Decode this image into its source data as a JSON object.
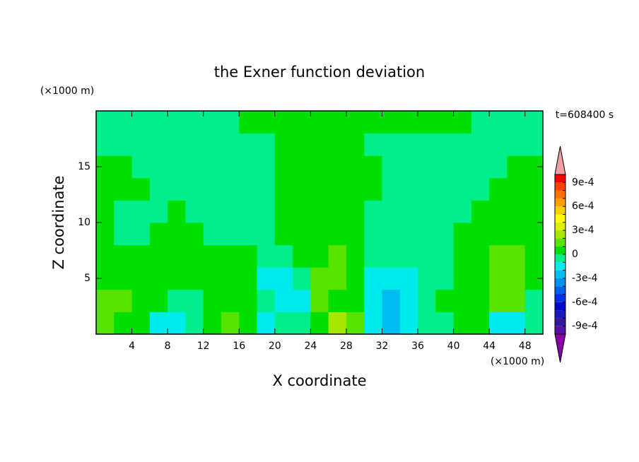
{
  "chart_data": {
    "type": "contour",
    "title": "the Exner function deviation",
    "xlabel": "X coordinate",
    "ylabel": "Z coordinate",
    "xunit": "(×1000 m)",
    "yunit": "(×1000 m)",
    "annotation": "t=608400 s",
    "xlim": [
      0,
      50
    ],
    "ylim": [
      0,
      20
    ],
    "xticks": [
      4,
      8,
      12,
      16,
      20,
      24,
      28,
      32,
      36,
      40,
      44,
      48
    ],
    "yticks": [
      5,
      10,
      15
    ],
    "levels": [
      -0.001,
      -0.0009,
      -0.0008,
      -0.0007,
      -0.0006,
      -0.0005,
      -0.0004,
      -0.0003,
      -0.0002,
      -0.0001,
      0,
      0.0001,
      0.0002,
      0.0003,
      0.0004,
      0.0005,
      0.0006,
      0.0007,
      0.0008,
      0.0009,
      0.001
    ],
    "colors": [
      "#5a10a8",
      "#34189c",
      "#1c18b8",
      "#0008d0",
      "#0030e8",
      "#0060f0",
      "#0090f0",
      "#00bcf0",
      "#00ecec",
      "#00ee8c",
      "#00e000",
      "#58e400",
      "#a8e800",
      "#dcf000",
      "#ffff00",
      "#ffd000",
      "#ffa000",
      "#ff7000",
      "#ff4000",
      "#ff0000"
    ],
    "under_color": "#8a00a8",
    "over_color": "#f0a0a0",
    "cbticks": [
      {
        "value": -0.0009,
        "label": "-9e-4"
      },
      {
        "value": -0.0006,
        "label": "-6e-4"
      },
      {
        "value": -0.0003,
        "label": "-3e-4"
      },
      {
        "value": 0,
        "label": "0"
      },
      {
        "value": 0.0003,
        "label": "3e-4"
      },
      {
        "value": 0.0006,
        "label": "6e-4"
      },
      {
        "value": 0.0009,
        "label": "9e-4"
      }
    ],
    "z": [
      [
        0.00015,
        5e-05,
        5e-05,
        -0.00015,
        -0.00015,
        -5e-05,
        5e-05,
        0.00015,
        5e-05,
        -0.00015,
        -5e-05,
        -5e-05,
        5e-05,
        0.00025,
        0.00015,
        -0.00015,
        -0.00025,
        -0.00015,
        -5e-05,
        -5e-05,
        5e-05,
        5e-05,
        -0.00015,
        -0.00015,
        -5e-05
      ],
      [
        0.00015,
        0.00015,
        5e-05,
        5e-05,
        -5e-05,
        -5e-05,
        5e-05,
        5e-05,
        5e-05,
        -5e-05,
        -0.00015,
        -0.00015,
        0.00015,
        5e-05,
        5e-05,
        -0.00015,
        -0.00025,
        -0.00015,
        -5e-05,
        5e-05,
        5e-05,
        5e-05,
        0.00015,
        0.00015,
        -5e-05
      ],
      [
        5e-05,
        5e-05,
        5e-05,
        5e-05,
        5e-05,
        5e-05,
        5e-05,
        5e-05,
        5e-05,
        -0.00015,
        -0.00015,
        -5e-05,
        0.00015,
        0.00015,
        5e-05,
        -0.00015,
        -0.00015,
        -0.00015,
        -5e-05,
        -5e-05,
        5e-05,
        5e-05,
        0.00015,
        0.00015,
        5e-05
      ],
      [
        5e-05,
        5e-05,
        5e-05,
        5e-05,
        5e-05,
        5e-05,
        5e-05,
        5e-05,
        5e-05,
        -5e-05,
        -5e-05,
        5e-05,
        5e-05,
        0.00015,
        5e-05,
        -5e-05,
        -5e-05,
        -5e-05,
        -5e-05,
        -5e-05,
        5e-05,
        5e-05,
        0.00015,
        0.00015,
        5e-05
      ],
      [
        5e-05,
        -5e-05,
        -5e-05,
        5e-05,
        5e-05,
        5e-05,
        -5e-05,
        -5e-05,
        -5e-05,
        -5e-05,
        5e-05,
        5e-05,
        5e-05,
        5e-05,
        5e-05,
        -5e-05,
        -5e-05,
        -5e-05,
        -5e-05,
        -5e-05,
        5e-05,
        5e-05,
        5e-05,
        5e-05,
        5e-05
      ],
      [
        5e-05,
        -5e-05,
        -5e-05,
        -5e-05,
        5e-05,
        -5e-05,
        -5e-05,
        -5e-05,
        -5e-05,
        -5e-05,
        5e-05,
        5e-05,
        5e-05,
        5e-05,
        5e-05,
        -5e-05,
        -5e-05,
        -5e-05,
        -5e-05,
        -5e-05,
        -5e-05,
        5e-05,
        5e-05,
        5e-05,
        5e-05
      ],
      [
        5e-05,
        5e-05,
        5e-05,
        -5e-05,
        -5e-05,
        -5e-05,
        -5e-05,
        -5e-05,
        -5e-05,
        -5e-05,
        5e-05,
        5e-05,
        5e-05,
        5e-05,
        5e-05,
        5e-05,
        -5e-05,
        -5e-05,
        -5e-05,
        -5e-05,
        -5e-05,
        -5e-05,
        5e-05,
        5e-05,
        5e-05
      ],
      [
        5e-05,
        5e-05,
        -5e-05,
        -5e-05,
        -5e-05,
        -5e-05,
        -5e-05,
        -5e-05,
        -5e-05,
        -5e-05,
        5e-05,
        5e-05,
        5e-05,
        5e-05,
        5e-05,
        5e-05,
        -5e-05,
        -5e-05,
        -5e-05,
        -5e-05,
        -5e-05,
        -5e-05,
        -5e-05,
        5e-05,
        5e-05
      ],
      [
        -5e-05,
        -5e-05,
        -5e-05,
        -5e-05,
        -5e-05,
        -5e-05,
        -5e-05,
        -5e-05,
        -5e-05,
        -5e-05,
        5e-05,
        5e-05,
        5e-05,
        5e-05,
        5e-05,
        -5e-05,
        -5e-05,
        -5e-05,
        -5e-05,
        -5e-05,
        -5e-05,
        -5e-05,
        -5e-05,
        -5e-05,
        -5e-05
      ],
      [
        -5e-05,
        -5e-05,
        -5e-05,
        -5e-05,
        -5e-05,
        -5e-05,
        -5e-05,
        -5e-05,
        5e-05,
        5e-05,
        5e-05,
        5e-05,
        5e-05,
        5e-05,
        5e-05,
        5e-05,
        5e-05,
        5e-05,
        5e-05,
        5e-05,
        5e-05,
        -5e-05,
        -5e-05,
        -5e-05,
        -5e-05
      ]
    ]
  }
}
